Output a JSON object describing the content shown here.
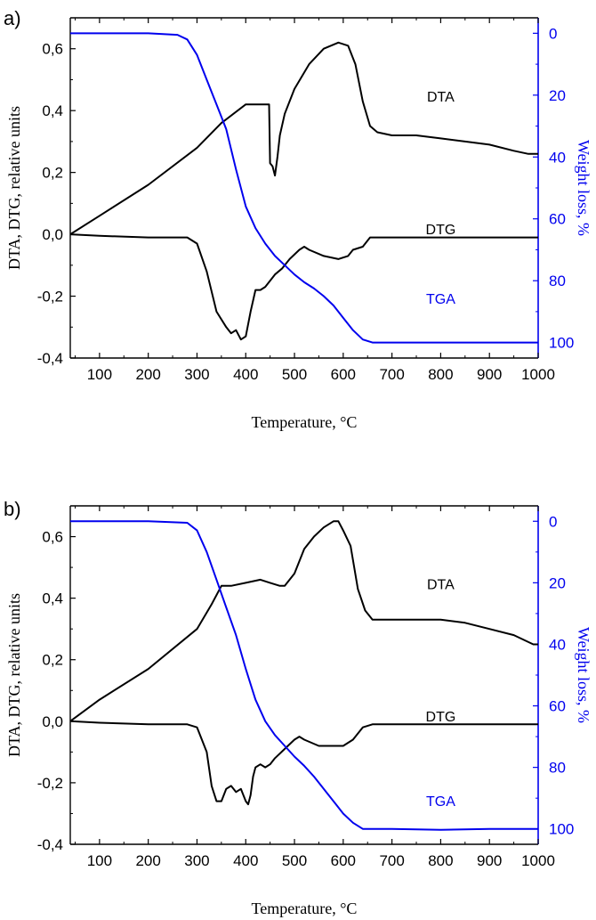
{
  "colors": {
    "left_axis": "#000000",
    "right_axis": "#0000ee",
    "dta": "#000000",
    "dtg": "#000000",
    "tga": "#0000ee"
  },
  "chart_data": [
    {
      "type": "line",
      "panel_label": "a)",
      "xlabel": "Temperature, °C",
      "ylabel": "DTA, DTG, relative units",
      "y2label": "Weight  loss, %",
      "xlim": [
        40,
        1000
      ],
      "ylim": [
        -0.4,
        0.7
      ],
      "y2lim": [
        -5,
        105
      ],
      "y2_inverted": true,
      "xticks": [
        100,
        200,
        300,
        400,
        500,
        600,
        700,
        800,
        900,
        1000
      ],
      "xtick_labels": [
        "100",
        "200",
        "300",
        "400",
        "500",
        "600",
        "700",
        "800",
        "900",
        "1000"
      ],
      "yticks": [
        -0.4,
        -0.2,
        0.0,
        0.2,
        0.4,
        0.6
      ],
      "ytick_labels": [
        "-0,4",
        "-0,2",
        "0,0",
        "0,2",
        "0,4",
        "0,6"
      ],
      "y2ticks": [
        0,
        20,
        40,
        60,
        80,
        100
      ],
      "y2tick_labels": [
        "0",
        "20",
        "40",
        "60",
        "80",
        "100"
      ],
      "series": [
        {
          "name": "DTA",
          "axis": "left",
          "label_at": [
            800,
            0.43
          ],
          "x": [
            40,
            100,
            200,
            300,
            350,
            400,
            420,
            440,
            448,
            450,
            455,
            460,
            465,
            470,
            480,
            500,
            530,
            560,
            590,
            610,
            625,
            640,
            655,
            670,
            700,
            750,
            800,
            850,
            900,
            950,
            980,
            1000
          ],
          "y": [
            0.0,
            0.06,
            0.16,
            0.28,
            0.36,
            0.42,
            0.42,
            0.42,
            0.42,
            0.23,
            0.22,
            0.19,
            0.25,
            0.32,
            0.39,
            0.47,
            0.55,
            0.6,
            0.62,
            0.61,
            0.55,
            0.43,
            0.35,
            0.33,
            0.32,
            0.32,
            0.31,
            0.3,
            0.29,
            0.27,
            0.26,
            0.26
          ]
        },
        {
          "name": "DTG",
          "axis": "left",
          "label_at": [
            800,
            0.0
          ],
          "x": [
            40,
            100,
            200,
            280,
            300,
            320,
            340,
            360,
            370,
            380,
            390,
            400,
            410,
            420,
            430,
            440,
            450,
            460,
            475,
            490,
            510,
            520,
            530,
            560,
            590,
            610,
            620,
            640,
            655,
            665,
            700,
            800,
            900,
            1000
          ],
          "y": [
            0.0,
            -0.005,
            -0.01,
            -0.01,
            -0.03,
            -0.12,
            -0.25,
            -0.3,
            -0.32,
            -0.31,
            -0.34,
            -0.33,
            -0.25,
            -0.18,
            -0.18,
            -0.17,
            -0.15,
            -0.13,
            -0.11,
            -0.08,
            -0.05,
            -0.04,
            -0.05,
            -0.07,
            -0.08,
            -0.07,
            -0.05,
            -0.04,
            -0.01,
            -0.01,
            -0.01,
            -0.01,
            -0.01,
            -0.01
          ]
        },
        {
          "name": "TGA",
          "axis": "right",
          "label_at": [
            800,
            87.5
          ],
          "x": [
            40,
            100,
            200,
            260,
            280,
            300,
            320,
            340,
            360,
            380,
            400,
            420,
            440,
            460,
            480,
            500,
            520,
            540,
            560,
            580,
            600,
            620,
            640,
            660,
            700,
            800,
            900,
            1000
          ],
          "y": [
            0,
            0,
            0,
            0.5,
            2,
            7,
            15,
            23,
            31,
            44,
            56,
            63,
            68,
            72,
            75,
            78,
            80.5,
            82.5,
            85,
            88,
            92,
            96,
            99,
            100,
            100,
            100,
            100,
            100
          ]
        }
      ]
    },
    {
      "type": "line",
      "panel_label": "b)",
      "xlabel": "Temperature, °C",
      "ylabel": "DTA, DTG, relative units",
      "y2label": "Weight  loss, %",
      "xlim": [
        40,
        1000
      ],
      "ylim": [
        -0.4,
        0.7
      ],
      "y2lim": [
        -5,
        105
      ],
      "y2_inverted": true,
      "xticks": [
        100,
        200,
        300,
        400,
        500,
        600,
        700,
        800,
        900,
        1000
      ],
      "xtick_labels": [
        "100",
        "200",
        "300",
        "400",
        "500",
        "600",
        "700",
        "800",
        "900",
        "1000"
      ],
      "yticks": [
        -0.4,
        -0.2,
        0.0,
        0.2,
        0.4,
        0.6
      ],
      "ytick_labels": [
        "-0,4",
        "-0,2",
        "0,0",
        "0,2",
        "0,4",
        "0,6"
      ],
      "y2ticks": [
        0,
        20,
        40,
        60,
        80,
        100
      ],
      "y2tick_labels": [
        "0",
        "20",
        "40",
        "60",
        "80",
        "100"
      ],
      "series": [
        {
          "name": "DTA",
          "axis": "left",
          "label_at": [
            800,
            0.43
          ],
          "x": [
            40,
            100,
            200,
            300,
            330,
            350,
            370,
            400,
            430,
            450,
            470,
            480,
            500,
            520,
            540,
            560,
            580,
            590,
            600,
            615,
            630,
            645,
            660,
            700,
            750,
            800,
            850,
            900,
            950,
            990,
            1000
          ],
          "y": [
            0.0,
            0.07,
            0.17,
            0.3,
            0.38,
            0.44,
            0.44,
            0.45,
            0.46,
            0.45,
            0.44,
            0.44,
            0.48,
            0.56,
            0.6,
            0.63,
            0.65,
            0.65,
            0.62,
            0.57,
            0.43,
            0.36,
            0.33,
            0.33,
            0.33,
            0.33,
            0.32,
            0.3,
            0.28,
            0.25,
            0.25
          ]
        },
        {
          "name": "DTG",
          "axis": "left",
          "label_at": [
            800,
            0.0
          ],
          "x": [
            40,
            100,
            200,
            280,
            300,
            320,
            330,
            340,
            350,
            360,
            370,
            380,
            390,
            400,
            405,
            410,
            415,
            420,
            430,
            440,
            450,
            460,
            480,
            500,
            510,
            520,
            550,
            580,
            600,
            620,
            640,
            660,
            700,
            800,
            900,
            1000
          ],
          "y": [
            0.0,
            -0.005,
            -0.01,
            -0.01,
            -0.02,
            -0.1,
            -0.21,
            -0.26,
            -0.26,
            -0.22,
            -0.21,
            -0.23,
            -0.22,
            -0.26,
            -0.27,
            -0.24,
            -0.18,
            -0.15,
            -0.14,
            -0.15,
            -0.14,
            -0.12,
            -0.09,
            -0.06,
            -0.05,
            -0.06,
            -0.08,
            -0.08,
            -0.08,
            -0.06,
            -0.02,
            -0.01,
            -0.01,
            -0.01,
            -0.01,
            -0.01
          ]
        },
        {
          "name": "TGA",
          "axis": "right",
          "label_at": [
            800,
            92.5
          ],
          "x": [
            40,
            100,
            200,
            280,
            300,
            320,
            340,
            360,
            380,
            400,
            420,
            440,
            460,
            480,
            500,
            520,
            540,
            560,
            580,
            600,
            620,
            640,
            660,
            700,
            800,
            900,
            1000
          ],
          "y": [
            0,
            0,
            0,
            0.5,
            3,
            10,
            19,
            28,
            37,
            48,
            58,
            65,
            69.5,
            73,
            76.5,
            79.5,
            83,
            87,
            91,
            95,
            98,
            100,
            100,
            100,
            100.3,
            100,
            100
          ]
        }
      ]
    }
  ]
}
